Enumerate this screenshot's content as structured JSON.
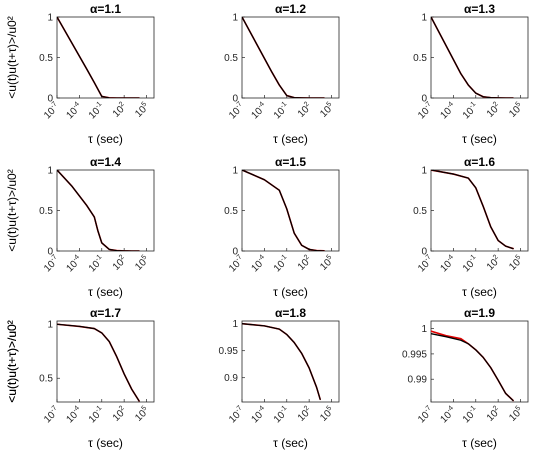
{
  "chart_data": [
    {
      "type": "line",
      "title": "α=1.1",
      "xlabel": "τ (sec)",
      "ylabel": "<u(t)u(t+τ)>/u0²",
      "xscale": "log",
      "xlim": [
        1e-07,
        1000000.0
      ],
      "ylim": [
        0,
        1
      ],
      "xticks": [
        {
          "value": 1e-07,
          "base": "10",
          "exp": "-7"
        },
        {
          "value": 0.0001,
          "base": "10",
          "exp": "-4"
        },
        {
          "value": 0.1,
          "base": "10",
          "exp": "-1"
        },
        {
          "value": 100.0,
          "base": "10",
          "exp": "2"
        },
        {
          "value": 100000.0,
          "base": "10",
          "exp": "5"
        }
      ],
      "yticks": [
        {
          "value": 0,
          "label": "0"
        },
        {
          "value": 0.5,
          "label": "0.5"
        },
        {
          "value": 1,
          "label": "1"
        }
      ],
      "series": [
        {
          "color": "#e00000",
          "width": 1.6,
          "x": [
            1e-07,
            0.001,
            0.01,
            0.1,
            1,
            10.0,
            100.0,
            1000.0,
            10000.0
          ],
          "y": [
            1,
            0.355,
            0.19,
            0.02,
            0.002,
            0.0,
            0.0,
            0.0,
            0.0
          ]
        },
        {
          "color": "#000000",
          "width": 1.3,
          "x": [
            1e-07,
            0.001,
            0.01,
            0.1,
            1,
            10.0,
            100.0,
            1000.0,
            10000.0
          ],
          "y": [
            1,
            0.355,
            0.19,
            0.02,
            0.002,
            0.0,
            0.0,
            0.0,
            0.0
          ]
        }
      ]
    },
    {
      "type": "line",
      "title": "α=1.2",
      "xlabel": "τ (sec)",
      "ylabel": "",
      "xscale": "log",
      "xlim": [
        1e-07,
        1000000.0
      ],
      "ylim": [
        0,
        1
      ],
      "xticks": [
        {
          "value": 1e-07,
          "base": "10",
          "exp": "-7"
        },
        {
          "value": 0.0001,
          "base": "10",
          "exp": "-4"
        },
        {
          "value": 0.1,
          "base": "10",
          "exp": "-1"
        },
        {
          "value": 100.0,
          "base": "10",
          "exp": "2"
        },
        {
          "value": 100000.0,
          "base": "10",
          "exp": "5"
        }
      ],
      "yticks": [
        {
          "value": 0,
          "label": "0"
        },
        {
          "value": 0.5,
          "label": "0.5"
        },
        {
          "value": 1,
          "label": "1"
        }
      ],
      "series": [
        {
          "color": "#e00000",
          "width": 1.6,
          "x": [
            1e-07,
            0.001,
            0.01,
            0.1,
            1,
            10.0,
            100.0,
            1000.0,
            10000.0
          ],
          "y": [
            1,
            0.32,
            0.16,
            0.03,
            0.004,
            0.001,
            0.0,
            0.0,
            0.0
          ]
        },
        {
          "color": "#000000",
          "width": 1.3,
          "x": [
            1e-07,
            0.001,
            0.01,
            0.1,
            1,
            10.0,
            100.0,
            1000.0,
            10000.0
          ],
          "y": [
            1,
            0.32,
            0.16,
            0.03,
            0.004,
            0.001,
            0.0,
            0.0,
            0.0
          ]
        }
      ]
    },
    {
      "type": "line",
      "title": "α=1.3",
      "xlabel": "τ (sec)",
      "ylabel": "",
      "xscale": "log",
      "xlim": [
        1e-07,
        1000000.0
      ],
      "ylim": [
        0,
        1
      ],
      "xticks": [
        {
          "value": 1e-07,
          "base": "10",
          "exp": "-7"
        },
        {
          "value": 0.0001,
          "base": "10",
          "exp": "-4"
        },
        {
          "value": 0.1,
          "base": "10",
          "exp": "-1"
        },
        {
          "value": 100.0,
          "base": "10",
          "exp": "2"
        },
        {
          "value": 100000.0,
          "base": "10",
          "exp": "5"
        }
      ],
      "yticks": [
        {
          "value": 0,
          "label": "0"
        },
        {
          "value": 0.5,
          "label": "0.5"
        },
        {
          "value": 1,
          "label": "1"
        }
      ],
      "series": [
        {
          "color": "#e00000",
          "width": 1.6,
          "x": [
            1e-07,
            0.001,
            0.01,
            0.1,
            1,
            10.0,
            100.0,
            1000.0,
            10000.0
          ],
          "y": [
            1,
            0.3,
            0.16,
            0.06,
            0.015,
            0.004,
            0.001,
            0.0,
            0.0
          ]
        },
        {
          "color": "#000000",
          "width": 1.3,
          "x": [
            1e-07,
            0.001,
            0.01,
            0.1,
            1,
            10.0,
            100.0,
            1000.0,
            10000.0
          ],
          "y": [
            1,
            0.3,
            0.16,
            0.06,
            0.015,
            0.004,
            0.001,
            0.0,
            0.0
          ]
        }
      ]
    },
    {
      "type": "line",
      "title": "α=1.4",
      "xlabel": "τ (sec)",
      "ylabel": "<u(t)u(t+τ)>/u0²",
      "xscale": "log",
      "xlim": [
        1e-07,
        1000000.0
      ],
      "ylim": [
        0,
        1
      ],
      "xticks": [
        {
          "value": 1e-07,
          "base": "10",
          "exp": "-7"
        },
        {
          "value": 0.0001,
          "base": "10",
          "exp": "-4"
        },
        {
          "value": 0.1,
          "base": "10",
          "exp": "-1"
        },
        {
          "value": 100.0,
          "base": "10",
          "exp": "2"
        },
        {
          "value": 100000.0,
          "base": "10",
          "exp": "5"
        }
      ],
      "yticks": [
        {
          "value": 0,
          "label": "0"
        },
        {
          "value": 0.5,
          "label": "0.5"
        },
        {
          "value": 1,
          "label": "1"
        }
      ],
      "series": [
        {
          "color": "#e00000",
          "width": 1.6,
          "x": [
            1e-07,
            1e-05,
            0.001,
            0.01,
            0.03,
            0.1,
            1,
            10.0,
            100.0,
            1000.0,
            10000.0
          ],
          "y": [
            1,
            0.8,
            0.56,
            0.42,
            0.25,
            0.1,
            0.02,
            0.005,
            0.001,
            0.0,
            0.0
          ]
        },
        {
          "color": "#000000",
          "width": 1.3,
          "x": [
            1e-07,
            1e-05,
            0.001,
            0.01,
            0.03,
            0.1,
            1,
            10.0,
            100.0,
            1000.0,
            10000.0
          ],
          "y": [
            1,
            0.8,
            0.56,
            0.42,
            0.25,
            0.1,
            0.02,
            0.005,
            0.001,
            0.0,
            0.0
          ]
        }
      ]
    },
    {
      "type": "line",
      "title": "α=1.5",
      "xlabel": "τ (sec)",
      "ylabel": "",
      "xscale": "log",
      "xlim": [
        1e-07,
        1000000.0
      ],
      "ylim": [
        0,
        1
      ],
      "xticks": [
        {
          "value": 1e-07,
          "base": "10",
          "exp": "-7"
        },
        {
          "value": 0.0001,
          "base": "10",
          "exp": "-4"
        },
        {
          "value": 0.1,
          "base": "10",
          "exp": "-1"
        },
        {
          "value": 100.0,
          "base": "10",
          "exp": "2"
        },
        {
          "value": 100000.0,
          "base": "10",
          "exp": "5"
        }
      ],
      "yticks": [
        {
          "value": 0,
          "label": "0"
        },
        {
          "value": 0.5,
          "label": "0.5"
        },
        {
          "value": 1,
          "label": "1"
        }
      ],
      "series": [
        {
          "color": "#e00000",
          "width": 1.6,
          "x": [
            1e-07,
            0.0001,
            0.01,
            0.1,
            1,
            10.0,
            100.0,
            1000.0,
            10000.0
          ],
          "y": [
            1,
            0.88,
            0.75,
            0.52,
            0.22,
            0.07,
            0.02,
            0.005,
            0.002
          ]
        },
        {
          "color": "#000000",
          "width": 1.3,
          "x": [
            1e-07,
            0.0001,
            0.01,
            0.1,
            1,
            10.0,
            100.0,
            1000.0,
            10000.0
          ],
          "y": [
            1,
            0.88,
            0.75,
            0.52,
            0.22,
            0.07,
            0.02,
            0.005,
            0.002
          ]
        }
      ]
    },
    {
      "type": "line",
      "title": "α=1.6",
      "xlabel": "τ (sec)",
      "ylabel": "",
      "xscale": "log",
      "xlim": [
        1e-07,
        1000000.0
      ],
      "ylim": [
        0,
        1
      ],
      "xticks": [
        {
          "value": 1e-07,
          "base": "10",
          "exp": "-7"
        },
        {
          "value": 0.0001,
          "base": "10",
          "exp": "-4"
        },
        {
          "value": 0.1,
          "base": "10",
          "exp": "-1"
        },
        {
          "value": 100.0,
          "base": "10",
          "exp": "2"
        },
        {
          "value": 100000.0,
          "base": "10",
          "exp": "5"
        }
      ],
      "yticks": [
        {
          "value": 0,
          "label": "0"
        },
        {
          "value": 0.5,
          "label": "0.5"
        },
        {
          "value": 1,
          "label": "1"
        }
      ],
      "series": [
        {
          "color": "#e00000",
          "width": 1.6,
          "x": [
            1e-07,
            0.0001,
            0.01,
            0.1,
            1,
            10.0,
            100.0,
            1000.0,
            10000.0
          ],
          "y": [
            1,
            0.95,
            0.9,
            0.78,
            0.55,
            0.3,
            0.13,
            0.06,
            0.03
          ]
        },
        {
          "color": "#000000",
          "width": 1.3,
          "x": [
            1e-07,
            0.0001,
            0.01,
            0.1,
            1,
            10.0,
            100.0,
            1000.0,
            10000.0
          ],
          "y": [
            1,
            0.95,
            0.9,
            0.78,
            0.55,
            0.3,
            0.13,
            0.06,
            0.03
          ]
        }
      ]
    },
    {
      "type": "line",
      "title": "α=1.7",
      "xlabel": "τ (sec)",
      "ylabel": "<u(t)u(t+τ)>/u0²",
      "xscale": "log",
      "xlim": [
        1e-07,
        1000000.0
      ],
      "ylim": [
        0.28,
        1.03
      ],
      "xticks": [
        {
          "value": 1e-07,
          "base": "10",
          "exp": "-7"
        },
        {
          "value": 0.0001,
          "base": "10",
          "exp": "-4"
        },
        {
          "value": 0.1,
          "base": "10",
          "exp": "-1"
        },
        {
          "value": 100.0,
          "base": "10",
          "exp": "2"
        },
        {
          "value": 100000.0,
          "base": "10",
          "exp": "5"
        }
      ],
      "yticks": [
        {
          "value": 0.5,
          "label": "0.5"
        },
        {
          "value": 1,
          "label": "1"
        }
      ],
      "series": [
        {
          "color": "#e00000",
          "width": 1.6,
          "x": [
            1e-07,
            0.0001,
            0.01,
            0.1,
            1,
            10.0,
            100.0,
            1000.0,
            10000.0
          ],
          "y": [
            1,
            0.98,
            0.96,
            0.92,
            0.84,
            0.7,
            0.54,
            0.4,
            0.29
          ]
        },
        {
          "color": "#000000",
          "width": 1.3,
          "x": [
            1e-07,
            0.0001,
            0.01,
            0.1,
            1,
            10.0,
            100.0,
            1000.0,
            10000.0
          ],
          "y": [
            1,
            0.98,
            0.96,
            0.92,
            0.84,
            0.7,
            0.54,
            0.4,
            0.29
          ]
        }
      ]
    },
    {
      "type": "line",
      "title": "α=1.8",
      "xlabel": "τ (sec)",
      "ylabel": "",
      "xscale": "log",
      "xlim": [
        1e-07,
        1000000.0
      ],
      "ylim": [
        0.855,
        1.005
      ],
      "xticks": [
        {
          "value": 1e-07,
          "base": "10",
          "exp": "-7"
        },
        {
          "value": 0.0001,
          "base": "10",
          "exp": "-4"
        },
        {
          "value": 0.1,
          "base": "10",
          "exp": "-1"
        },
        {
          "value": 100.0,
          "base": "10",
          "exp": "2"
        },
        {
          "value": 100000.0,
          "base": "10",
          "exp": "5"
        }
      ],
      "yticks": [
        {
          "value": 0.9,
          "label": "0.9"
        },
        {
          "value": 0.95,
          "label": "0.95"
        },
        {
          "value": 1,
          "label": "1"
        }
      ],
      "series": [
        {
          "color": "#e00000",
          "width": 1.6,
          "x": [
            1e-07,
            0.0001,
            0.01,
            0.1,
            1,
            10.0,
            100.0,
            1000.0,
            3000.0
          ],
          "y": [
            1,
            0.996,
            0.99,
            0.98,
            0.965,
            0.945,
            0.918,
            0.882,
            0.86
          ]
        },
        {
          "color": "#000000",
          "width": 1.3,
          "x": [
            1e-07,
            0.0001,
            0.01,
            0.1,
            1,
            10.0,
            100.0,
            1000.0,
            3000.0
          ],
          "y": [
            1,
            0.996,
            0.99,
            0.98,
            0.965,
            0.945,
            0.918,
            0.882,
            0.86
          ]
        }
      ]
    },
    {
      "type": "line",
      "title": "α=1.9",
      "xlabel": "τ (sec)",
      "ylabel": "<u(t)u(t+τ)>/u0²",
      "xscale": "log",
      "xlim": [
        1e-07,
        1000000.0
      ],
      "ylim": [
        0.9855,
        1.0015
      ],
      "xticks": [
        {
          "value": 1e-07,
          "base": "10",
          "exp": "-7"
        },
        {
          "value": 0.0001,
          "base": "10",
          "exp": "-4"
        },
        {
          "value": 0.1,
          "base": "10",
          "exp": "-1"
        },
        {
          "value": 100.0,
          "base": "10",
          "exp": "2"
        },
        {
          "value": 100000.0,
          "base": "10",
          "exp": "5"
        }
      ],
      "yticks": [
        {
          "value": 0.99,
          "label": "0.99"
        },
        {
          "value": 0.995,
          "label": "0.995"
        },
        {
          "value": 1,
          "label": "1"
        }
      ],
      "series": [
        {
          "color": "#e00000",
          "width": 1.6,
          "x": [
            1e-07,
            1e-05,
            0.001,
            0.01,
            0.1,
            1,
            10.0,
            100.0,
            1000.0,
            10000.0
          ],
          "y": [
            0.9995,
            0.9986,
            0.998,
            0.997,
            0.9958,
            0.9943,
            0.9923,
            0.9898,
            0.9872,
            0.9858
          ]
        },
        {
          "color": "#000000",
          "width": 1.3,
          "x": [
            1e-07,
            1e-05,
            0.001,
            0.01,
            0.1,
            1,
            10.0,
            100.0,
            1000.0,
            10000.0
          ],
          "y": [
            0.999,
            0.9984,
            0.9977,
            0.997,
            0.9958,
            0.9943,
            0.9923,
            0.9898,
            0.9872,
            0.9858
          ]
        }
      ]
    }
  ]
}
